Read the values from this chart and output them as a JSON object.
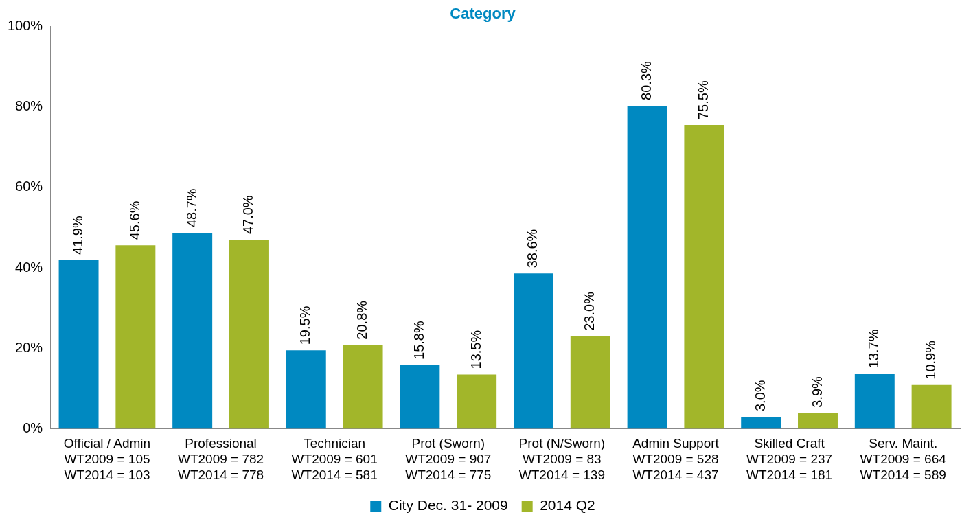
{
  "chart_data": {
    "type": "bar",
    "title": "Category",
    "categories": [
      "Official / Admin\nWT2009 = 105\nWT2014 = 103",
      "Professional\nWT2009 = 782\nWT2014 = 778",
      "Technician\nWT2009 = 601\nWT2014 = 581",
      "Prot (Sworn)\nWT2009 = 907\nWT2014 = 775",
      "Prot (N/Sworn)\nWT2009 = 83\nWT2014 = 139",
      "Admin Support\nWT2009 = 528\nWT2014 = 437",
      "Skilled Craft\nWT2009 = 237\nWT2014 = 181",
      "Serv. Maint.\nWT2009 = 664\nWT2014 = 589"
    ],
    "series": [
      {
        "name": "City Dec. 31- 2009",
        "color": "#0089c1",
        "values": [
          41.9,
          48.7,
          19.5,
          15.8,
          38.6,
          80.3,
          3.0,
          13.7
        ],
        "value_labels": [
          "41.9%",
          "48.7%",
          "19.5%",
          "15.8%",
          "38.6%",
          "80.3%",
          "3.0%",
          "13.7%"
        ]
      },
      {
        "name": "2014 Q2",
        "color": "#a2b62a",
        "values": [
          45.6,
          47.0,
          20.8,
          13.5,
          23.0,
          75.5,
          3.9,
          10.9
        ],
        "value_labels": [
          "45.6%",
          "47.0%",
          "20.8%",
          "13.5%",
          "23.0%",
          "75.5%",
          "3.9%",
          "10.9%"
        ]
      }
    ],
    "ylim": [
      0,
      100
    ],
    "yticks": [
      {
        "value": 0,
        "label": "0%"
      },
      {
        "value": 20,
        "label": "20%"
      },
      {
        "value": 40,
        "label": "40%"
      },
      {
        "value": 60,
        "label": "60%"
      },
      {
        "value": 80,
        "label": "80%"
      },
      {
        "value": 100,
        "label": "100%"
      }
    ],
    "grid": false,
    "legend": "bottom"
  }
}
